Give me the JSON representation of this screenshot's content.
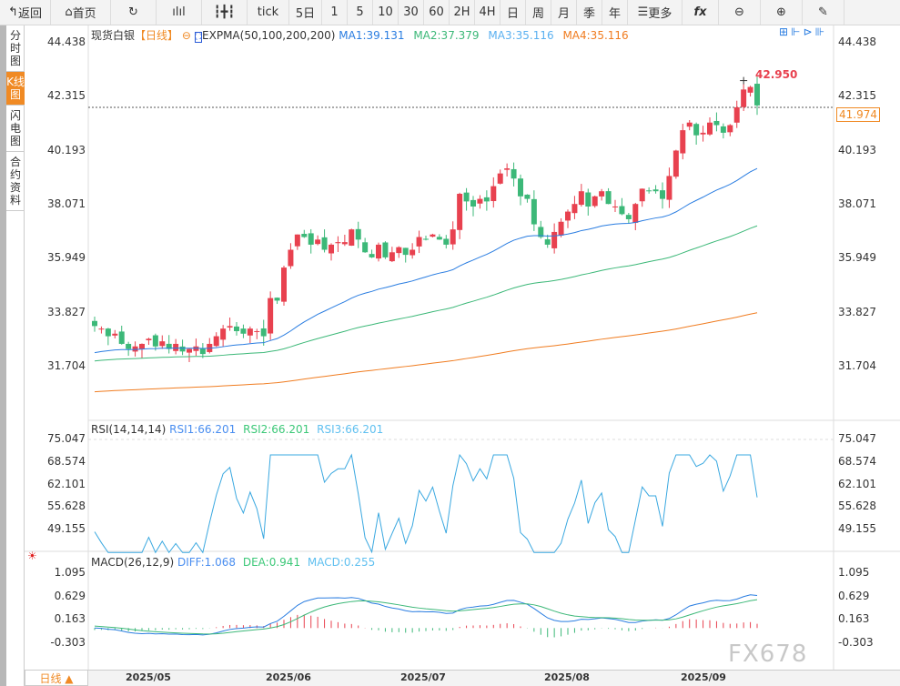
{
  "toolbar": {
    "items": [
      {
        "icon": "back-arrow-icon",
        "label": "返回"
      },
      {
        "icon": "home-icon",
        "label": "首页"
      },
      {
        "icon": "refresh-icon",
        "label": ""
      },
      {
        "icon": "bar-chart-icon",
        "label": ""
      },
      {
        "icon": "candlestick-icon",
        "label": ""
      },
      {
        "label": "tick"
      },
      {
        "label": "5日"
      },
      {
        "label": "1"
      },
      {
        "label": "5"
      },
      {
        "label": "10"
      },
      {
        "label": "30"
      },
      {
        "label": "60"
      },
      {
        "label": "2H"
      },
      {
        "label": "4H"
      },
      {
        "label": "日"
      },
      {
        "label": "周"
      },
      {
        "label": "月"
      },
      {
        "label": "季"
      },
      {
        "label": "年"
      },
      {
        "icon": "menu-icon",
        "label": "更多"
      },
      {
        "icon": "fx-icon",
        "label": "fx"
      },
      {
        "icon": "zoom-out-icon",
        "label": ""
      },
      {
        "icon": "zoom-in-icon",
        "label": ""
      },
      {
        "icon": "pen-icon",
        "label": ""
      }
    ]
  },
  "side_tabs": [
    {
      "label": "分时图"
    },
    {
      "label": "K线图",
      "active": true
    },
    {
      "label": "闪电图"
    },
    {
      "label": "合约资料"
    }
  ],
  "main_legend": {
    "symbol": "现货白银",
    "period": "【日线】",
    "indicator": "EXPMA(50,100,200,200)",
    "ma1": "MA1:39.131",
    "ma2": "MA2:37.379",
    "ma3": "MA3:35.116",
    "ma4": "MA4:35.116"
  },
  "price_axis": [
    "44.438",
    "42.315",
    "40.193",
    "38.071",
    "35.949",
    "33.827",
    "31.704"
  ],
  "high_label": "42.950",
  "last_price": "41.974",
  "rsi_legend": {
    "title": "RSI(14,14,14)",
    "rsi1": "RSI1:66.201",
    "rsi2": "RSI2:66.201",
    "rsi3": "RSI3:66.201"
  },
  "rsi_axis": [
    "75.047",
    "68.574",
    "62.101",
    "55.628",
    "49.155"
  ],
  "macd_legend": {
    "title": "MACD(26,12,9)",
    "diff": "DIFF:1.068",
    "dea": "DEA:0.941",
    "macd": "MACD:0.255"
  },
  "macd_axis": [
    "1.095",
    "0.629",
    "0.163",
    "-0.303"
  ],
  "dates": [
    "2025/05",
    "2025/06",
    "2025/07",
    "2025/08",
    "2025/09"
  ],
  "period_select": "日线 ▲",
  "watermark": "FX678",
  "colors": {
    "up": "#e8414f",
    "down": "#3cb878",
    "ma1": "#2a7de1",
    "ma2": "#3cb878",
    "ma4": "#f07c20",
    "rsi": "#3aa8e0",
    "accent": "#f08a24"
  },
  "chart_data": {
    "type": "candlestick",
    "closes": [
      33.3,
      33.2,
      32.9,
      33.0,
      32.6,
      32.4,
      32.5,
      32.6,
      32.8,
      32.5,
      32.7,
      32.4,
      32.6,
      32.3,
      32.4,
      32.5,
      32.2,
      32.6,
      32.9,
      33.2,
      33.3,
      33.1,
      33.0,
      33.2,
      33.1,
      32.9,
      34.4,
      34.3,
      35.6,
      36.3,
      36.9,
      36.8,
      36.5,
      36.7,
      36.3,
      36.5,
      36.6,
      36.6,
      37.1,
      36.7,
      36.2,
      36.0,
      36.5,
      36.0,
      36.2,
      36.4,
      36.1,
      36.3,
      36.8,
      36.7,
      36.9,
      36.7,
      36.5,
      37.1,
      38.5,
      38.2,
      38.0,
      38.3,
      38.2,
      38.8,
      39.3,
      39.5,
      39.1,
      38.4,
      38.3,
      37.3,
      36.8,
      36.5,
      37.0,
      37.4,
      37.8,
      38.1,
      38.6,
      38.0,
      38.4,
      38.6,
      38.1,
      38.0,
      37.7,
      37.5,
      38.1,
      38.7,
      38.6,
      38.6,
      38.3,
      39.2,
      40.2,
      41.0,
      41.3,
      40.8,
      40.9,
      41.3,
      41.2,
      40.9,
      41.2,
      41.9,
      42.6,
      42.7,
      41.974
    ],
    "ylim": [
      31.704,
      44.438
    ]
  }
}
